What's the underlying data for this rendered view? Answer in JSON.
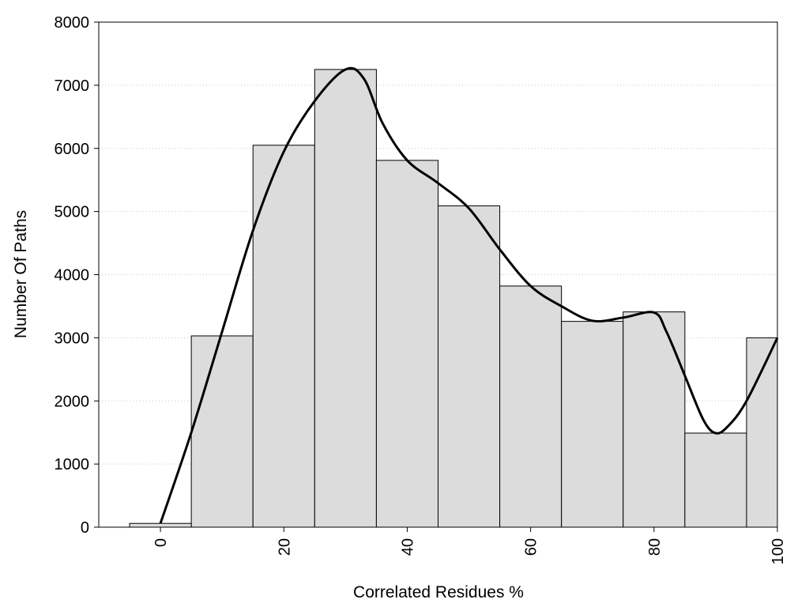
{
  "chart_data": {
    "type": "bar",
    "subtype": "histogram-with-smooth-curve",
    "xlabel": "Correlated Residues %",
    "ylabel": "Number Of Paths",
    "xlim": [
      -10,
      100
    ],
    "ylim": [
      0,
      8000
    ],
    "x_ticks": [
      "0",
      "20",
      "40",
      "60",
      "80",
      "100"
    ],
    "y_ticks": [
      "0",
      "1000",
      "2000",
      "3000",
      "4000",
      "5000",
      "6000",
      "7000",
      "8000"
    ],
    "grid": "horizontal dotted",
    "bin_width": 10,
    "bins": [
      {
        "center": 0,
        "value": 60
      },
      {
        "center": 10,
        "value": 3030
      },
      {
        "center": 20,
        "value": 6050
      },
      {
        "center": 30,
        "value": 7250
      },
      {
        "center": 40,
        "value": 5810
      },
      {
        "center": 50,
        "value": 5090
      },
      {
        "center": 60,
        "value": 3820
      },
      {
        "center": 70,
        "value": 3260
      },
      {
        "center": 80,
        "value": 3410
      },
      {
        "center": 90,
        "value": 1490
      },
      {
        "center": 100,
        "value": 3000
      }
    ],
    "curve": [
      [
        0,
        60
      ],
      [
        5,
        1500
      ],
      [
        10,
        3100
      ],
      [
        15,
        4700
      ],
      [
        20,
        5950
      ],
      [
        25,
        6750
      ],
      [
        30,
        7250
      ],
      [
        33,
        7100
      ],
      [
        36,
        6400
      ],
      [
        40,
        5810
      ],
      [
        45,
        5450
      ],
      [
        50,
        5050
      ],
      [
        55,
        4400
      ],
      [
        60,
        3820
      ],
      [
        65,
        3500
      ],
      [
        70,
        3270
      ],
      [
        75,
        3320
      ],
      [
        80,
        3400
      ],
      [
        82,
        3100
      ],
      [
        85,
        2400
      ],
      [
        88,
        1700
      ],
      [
        90,
        1490
      ],
      [
        92,
        1600
      ],
      [
        95,
        2000
      ],
      [
        100,
        3000
      ]
    ],
    "colors": {
      "bar_fill": "#dcdcdc",
      "bar_stroke": "#000000",
      "curve": "#000000",
      "grid": "#c8c8c8"
    }
  }
}
